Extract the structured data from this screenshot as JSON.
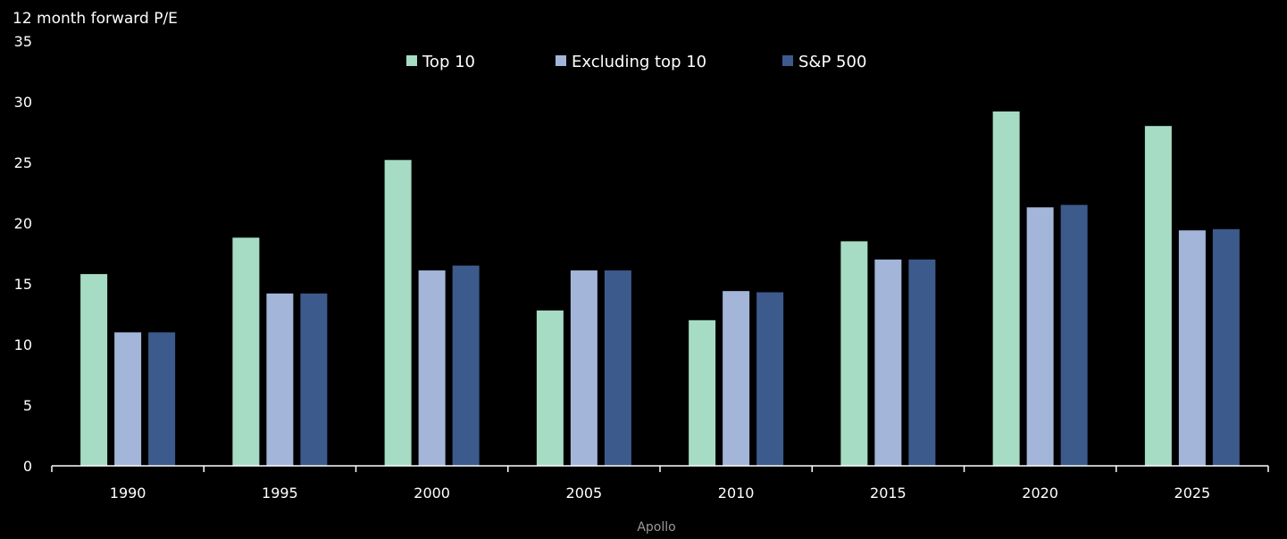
{
  "chart_data": {
    "type": "bar",
    "ylabel": "12 month forward P/E",
    "xlabel": "",
    "ylim": [
      0,
      35
    ],
    "yticks": [
      0,
      5,
      10,
      15,
      20,
      25,
      30,
      35
    ],
    "categories": [
      "1990",
      "1995",
      "2000",
      "2005",
      "2010",
      "2015",
      "2020",
      "2025"
    ],
    "series": [
      {
        "name": "Top 10",
        "color": "#a6dcc4",
        "values": [
          15.8,
          18.8,
          25.2,
          12.8,
          12.0,
          18.5,
          29.2,
          28.0
        ]
      },
      {
        "name": "Excluding top 10",
        "color": "#a3b5d8",
        "values": [
          11.0,
          14.2,
          16.1,
          16.1,
          14.4,
          17.0,
          21.3,
          19.4
        ]
      },
      {
        "name": "S&P 500",
        "color": "#3d5a8c",
        "values": [
          11.0,
          14.2,
          16.5,
          16.1,
          14.3,
          17.0,
          21.5,
          19.5
        ]
      }
    ],
    "legend_position": "top-center",
    "grid": false
  },
  "source": "Apollo"
}
